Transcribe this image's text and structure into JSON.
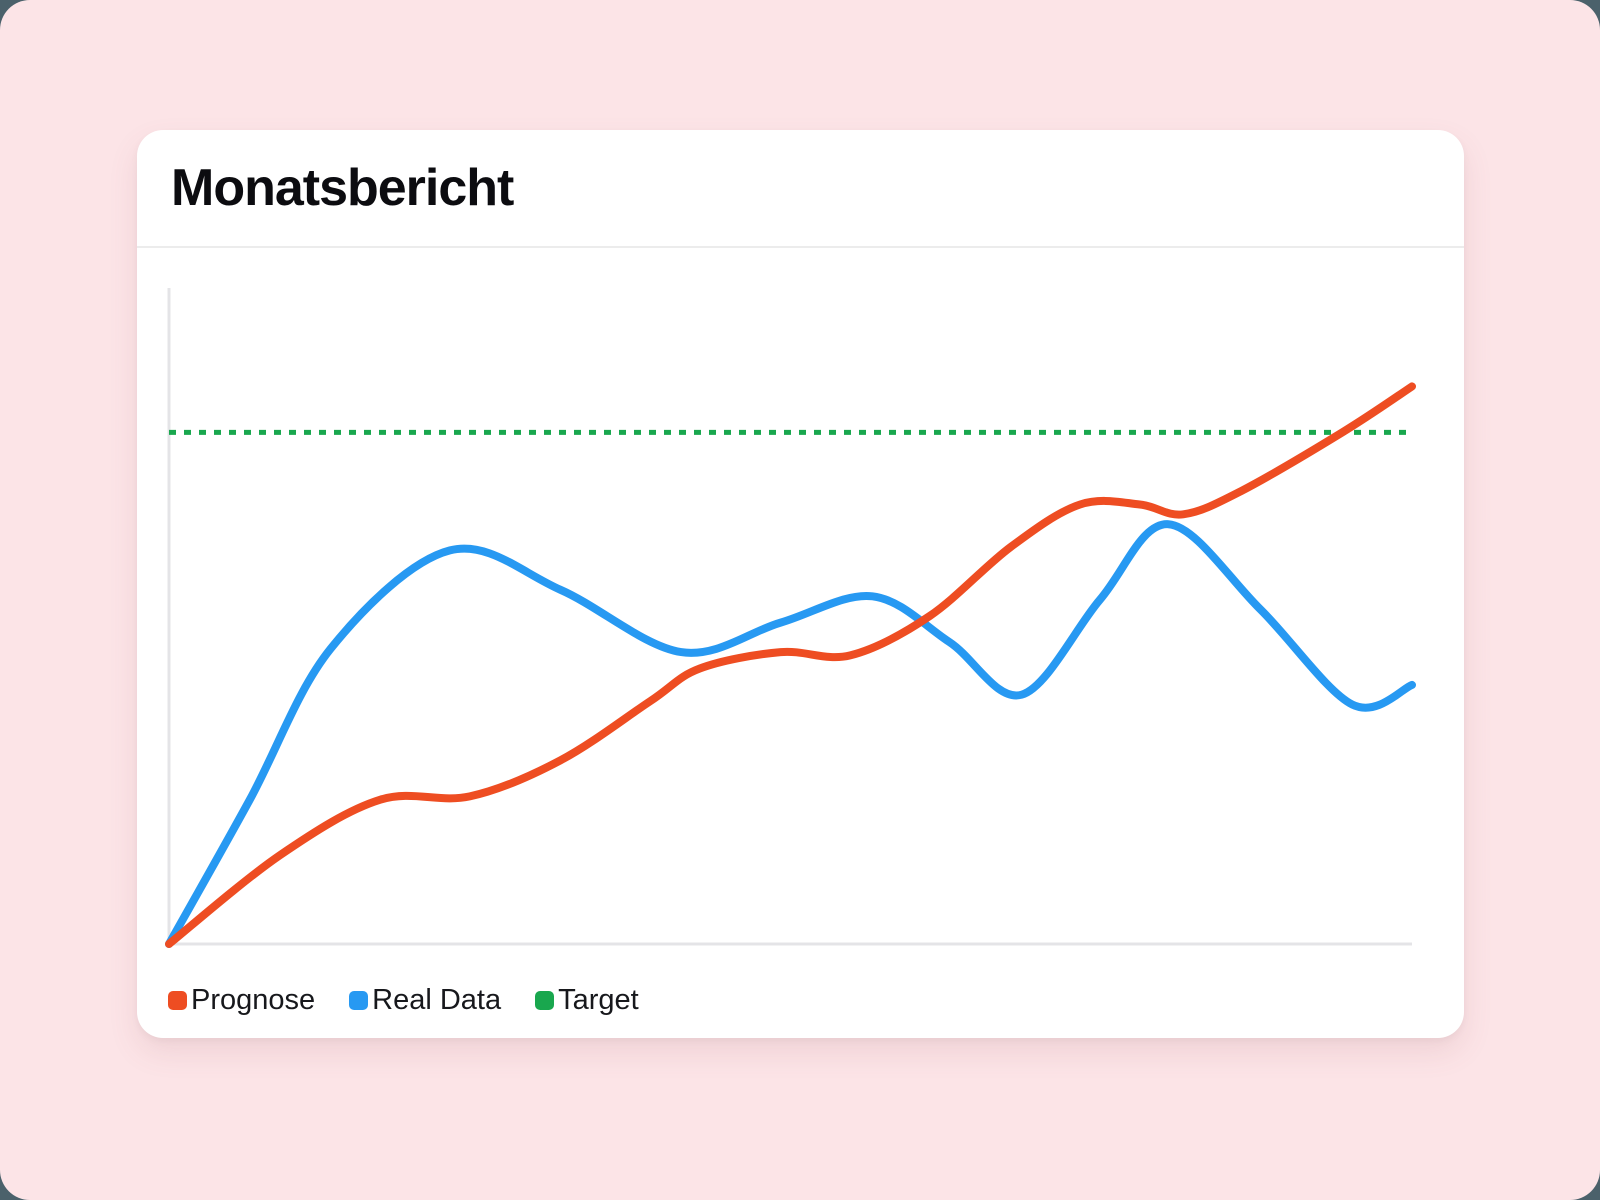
{
  "page": {
    "backdrop_color": "#4B616B",
    "surface_color": "#FCE4E7",
    "card_color": "#FFFFFF"
  },
  "card": {
    "title": "Monatsbericht"
  },
  "chart_data": {
    "type": "line",
    "title": "Monatsbericht",
    "xlabel": "",
    "ylabel": "",
    "x_ticks": [],
    "y_ticks": [],
    "xlim": [
      0,
      100
    ],
    "ylim": [
      0,
      100
    ],
    "grid": false,
    "legend_position": "bottom-left",
    "axes_color": "#E4E4E7",
    "note": "Axes have no visible tick labels; x and y values are normalized 0-100 estimates read from pixel positions.",
    "target": {
      "label": "Target",
      "value": 78,
      "color": "#19A74E",
      "style": "dashed"
    },
    "series": [
      {
        "name": "Prognose",
        "color": "#EE4D22",
        "points": [
          [
            0,
            0
          ],
          [
            8.9,
            13.5
          ],
          [
            17,
            22
          ],
          [
            24.2,
            22.5
          ],
          [
            31.5,
            28
          ],
          [
            38.7,
            37
          ],
          [
            42.7,
            42
          ],
          [
            49.2,
            44.5
          ],
          [
            54.8,
            44
          ],
          [
            61.2,
            50
          ],
          [
            67.7,
            60.5
          ],
          [
            73.3,
            67
          ],
          [
            78.1,
            67
          ],
          [
            81.6,
            65.5
          ],
          [
            86.2,
            69
          ],
          [
            94.4,
            78
          ],
          [
            100,
            85
          ]
        ]
      },
      {
        "name": "Real Data",
        "color": "#2799F2",
        "points": [
          [
            0,
            0
          ],
          [
            6.5,
            22
          ],
          [
            13,
            45
          ],
          [
            22.6,
            60
          ],
          [
            31.5,
            54
          ],
          [
            41.2,
            44.5
          ],
          [
            49.2,
            49
          ],
          [
            56.6,
            53
          ],
          [
            62.8,
            46
          ],
          [
            68.6,
            38
          ],
          [
            74.9,
            52.5
          ],
          [
            80.4,
            64
          ],
          [
            87.8,
            51
          ],
          [
            95.2,
            36.5
          ],
          [
            100,
            39.5
          ]
        ]
      }
    ]
  }
}
